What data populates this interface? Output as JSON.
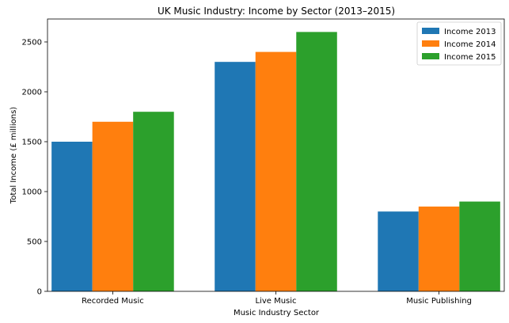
{
  "chart_data": {
    "type": "bar",
    "title": "UK Music Industry: Income by Sector (2013–2015)",
    "xlabel": "Music Industry Sector",
    "ylabel": "Total Income (£ millions)",
    "categories": [
      "Recorded Music",
      "Live Music",
      "Music Publishing"
    ],
    "series": [
      {
        "name": "Income 2013",
        "values": [
          1500,
          2300,
          800
        ],
        "color": "#1f77b4"
      },
      {
        "name": "Income 2014",
        "values": [
          1700,
          2400,
          850
        ],
        "color": "#ff7f0e"
      },
      {
        "name": "Income 2015",
        "values": [
          1800,
          2600,
          900
        ],
        "color": "#2ca02c"
      }
    ],
    "ylim": [
      0,
      2730
    ],
    "yticks": [
      0,
      500,
      1000,
      1500,
      2000,
      2500
    ],
    "grid": false,
    "legend_position": "top-right"
  }
}
